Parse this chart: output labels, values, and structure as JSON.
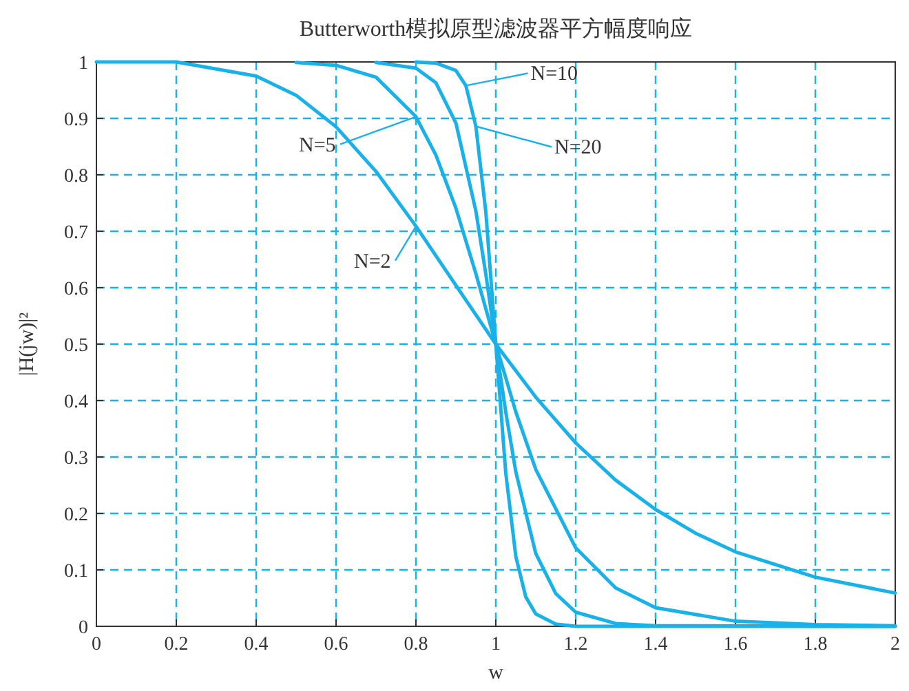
{
  "chart_data": {
    "type": "line",
    "title": "Butterworth模拟原型滤波器平方幅度响应",
    "xlabel": "w",
    "ylabel": "|H(jw)|²",
    "xlim": [
      0,
      2
    ],
    "ylim": [
      0,
      1
    ],
    "xticks": [
      0,
      0.2,
      0.4,
      0.6,
      0.8,
      1.0,
      1.2,
      1.4,
      1.6,
      1.8,
      2.0
    ],
    "yticks": [
      0,
      0.1,
      0.2,
      0.3,
      0.4,
      0.5,
      0.6,
      0.7,
      0.8,
      0.9,
      1.0
    ],
    "grid": true,
    "marker": "none",
    "line_style": "solid",
    "series": [
      {
        "color": "#1ab0e8",
        "x": [
          0,
          0.2,
          0.4,
          0.5,
          0.6,
          0.7,
          0.8,
          0.9,
          1.0,
          1.1,
          1.2,
          1.3,
          1.4,
          1.5,
          1.6,
          1.8,
          2.0
        ],
        "values": [
          1.0,
          1.0,
          0.975,
          0.941,
          0.885,
          0.806,
          0.709,
          0.604,
          0.5,
          0.406,
          0.325,
          0.259,
          0.207,
          0.165,
          0.132,
          0.087,
          0.059
        ]
      },
      {
        "color": "#1ab0e8",
        "x": [
          0.5,
          0.6,
          0.7,
          0.8,
          0.85,
          0.9,
          0.95,
          1.0,
          1.05,
          1.1,
          1.2,
          1.3,
          1.4,
          1.6,
          1.8,
          2.0
        ],
        "values": [
          0.999,
          0.994,
          0.973,
          0.903,
          0.835,
          0.741,
          0.625,
          0.5,
          0.38,
          0.278,
          0.139,
          0.068,
          0.033,
          0.009,
          0.003,
          0.001
        ]
      },
      {
        "color": "#1ab0e8",
        "x": [
          0.7,
          0.8,
          0.85,
          0.9,
          0.95,
          0.975,
          1.0,
          1.025,
          1.05,
          1.1,
          1.15,
          1.2,
          1.3,
          1.4,
          2.0
        ],
        "values": [
          0.999,
          0.989,
          0.963,
          0.892,
          0.736,
          0.624,
          0.5,
          0.379,
          0.274,
          0.129,
          0.058,
          0.025,
          0.005,
          0.001,
          0
        ]
      },
      {
        "color": "#1ab0e8",
        "x": [
          0.8,
          0.85,
          0.9,
          0.925,
          0.95,
          0.975,
          1.0,
          1.025,
          1.05,
          1.075,
          1.1,
          1.15,
          1.2,
          2.0
        ],
        "values": [
          1.0,
          0.998,
          0.985,
          0.958,
          0.886,
          0.734,
          0.5,
          0.271,
          0.124,
          0.052,
          0.022,
          0.004,
          0,
          0
        ]
      }
    ],
    "annotations": [
      {
        "text": "N=10",
        "x": 0.925,
        "y": 0.958
      },
      {
        "text": "N=5",
        "x": 0.8,
        "y": 0.903
      },
      {
        "text": "N=20",
        "x": 0.95,
        "y": 0.886
      },
      {
        "text": "N=2",
        "x": 0.8,
        "y": 0.709
      }
    ]
  }
}
